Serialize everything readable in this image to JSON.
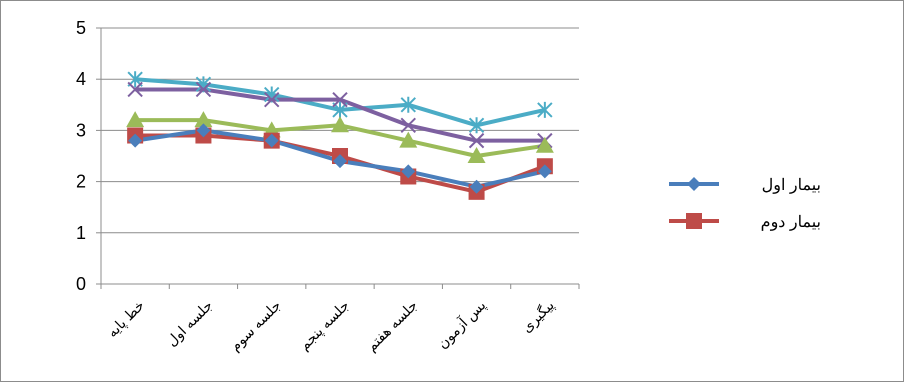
{
  "chart_data": {
    "type": "line",
    "title": "",
    "xlabel": "",
    "ylabel": "",
    "ylim": [
      0,
      5
    ],
    "y_ticks": [
      "0",
      "1",
      "2",
      "3",
      "4",
      "5"
    ],
    "grid": true,
    "legend_position": "right",
    "categories": [
      "خط پایه",
      "جلسه اول",
      "جلسه سوم",
      "جلسه پنجم",
      "جلسه هفتم",
      "پس آزمون",
      "پیگیری"
    ],
    "series": [
      {
        "name": "بیمار اول",
        "color": "#4a7ebb",
        "marker": "diamond",
        "values": [
          2.8,
          3.0,
          2.8,
          2.4,
          2.2,
          1.9,
          2.2
        ]
      },
      {
        "name": "بیمار دوم",
        "color": "#be4b48",
        "marker": "square",
        "values": [
          2.9,
          2.9,
          2.8,
          2.5,
          2.1,
          1.8,
          2.3
        ]
      },
      {
        "color": "#9bbb59",
        "marker": "triangle",
        "values": [
          3.2,
          3.2,
          3.0,
          3.1,
          2.8,
          2.5,
          2.7
        ]
      },
      {
        "color": "#7d60a0",
        "marker": "x",
        "values": [
          3.8,
          3.8,
          3.6,
          3.6,
          3.1,
          2.8,
          2.8
        ]
      },
      {
        "color": "#4bacc6",
        "marker": "star",
        "values": [
          4.0,
          3.9,
          3.7,
          3.4,
          3.5,
          3.1,
          3.4
        ]
      }
    ]
  }
}
